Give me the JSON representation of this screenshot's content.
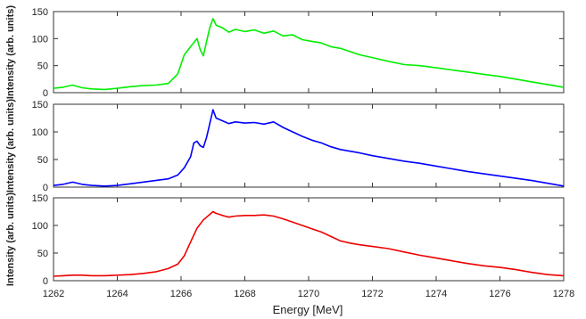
{
  "figure": {
    "xlabel": "Energy [MeV]",
    "x_ticks": [
      "1262",
      "1264",
      "1266",
      "1268",
      "1270",
      "1272",
      "1274",
      "1276",
      "1278"
    ]
  },
  "chart_data": [
    {
      "type": "line",
      "title": "",
      "xlabel": "",
      "ylabel": "Intensity (arb. units)",
      "xlim": [
        1262,
        1278
      ],
      "ylim": [
        0,
        150
      ],
      "y_ticks": [
        "0",
        "50",
        "100",
        "150"
      ],
      "grid": false,
      "color": "#00ee00",
      "series": [
        {
          "x": [
            1262.0,
            1262.3,
            1262.6,
            1262.9,
            1263.2,
            1263.6,
            1264.0,
            1264.4,
            1264.8,
            1265.2,
            1265.6,
            1265.9,
            1266.1,
            1266.3,
            1266.5,
            1266.6,
            1266.7,
            1266.8,
            1266.9,
            1267.0,
            1267.1,
            1267.3,
            1267.5,
            1267.7,
            1268.0,
            1268.3,
            1268.6,
            1268.9,
            1269.2,
            1269.5,
            1269.8,
            1270.1,
            1270.4,
            1270.7,
            1271.0,
            1271.3,
            1271.6,
            1272.0,
            1272.5,
            1273.0,
            1273.5,
            1274.0,
            1274.5,
            1275.0,
            1275.5,
            1276.0,
            1276.5,
            1277.0,
            1277.5,
            1278.0
          ],
          "y": [
            8,
            10,
            14,
            9,
            7,
            6,
            8,
            11,
            13,
            14,
            17,
            35,
            70,
            85,
            100,
            80,
            68,
            95,
            120,
            137,
            125,
            120,
            112,
            117,
            113,
            116,
            110,
            114,
            105,
            107,
            98,
            95,
            92,
            85,
            82,
            76,
            70,
            65,
            58,
            52,
            50,
            46,
            42,
            38,
            34,
            30,
            25,
            20,
            15,
            10
          ]
        }
      ]
    },
    {
      "type": "line",
      "title": "",
      "xlabel": "",
      "ylabel": "Intensity (arb. units)",
      "xlim": [
        1262,
        1278
      ],
      "ylim": [
        0,
        150
      ],
      "y_ticks": [
        "0",
        "50",
        "100",
        "150"
      ],
      "grid": false,
      "color": "#0000ff",
      "series": [
        {
          "x": [
            1262.0,
            1262.3,
            1262.6,
            1262.9,
            1263.2,
            1263.6,
            1264.0,
            1264.4,
            1264.8,
            1265.2,
            1265.6,
            1265.9,
            1266.1,
            1266.3,
            1266.4,
            1266.5,
            1266.6,
            1266.7,
            1266.8,
            1266.9,
            1267.0,
            1267.1,
            1267.3,
            1267.5,
            1267.7,
            1268.0,
            1268.3,
            1268.6,
            1268.9,
            1269.2,
            1269.5,
            1269.8,
            1270.1,
            1270.4,
            1270.7,
            1271.0,
            1271.3,
            1271.6,
            1272.0,
            1272.5,
            1273.0,
            1273.5,
            1274.0,
            1274.5,
            1275.0,
            1275.5,
            1276.0,
            1276.5,
            1277.0,
            1277.5,
            1278.0
          ],
          "y": [
            3,
            5,
            9,
            5,
            3,
            2,
            3,
            6,
            9,
            12,
            15,
            22,
            35,
            55,
            80,
            83,
            75,
            72,
            90,
            115,
            140,
            125,
            120,
            115,
            118,
            116,
            117,
            114,
            118,
            108,
            100,
            92,
            85,
            80,
            73,
            68,
            65,
            62,
            57,
            52,
            47,
            43,
            38,
            33,
            28,
            24,
            20,
            16,
            12,
            7,
            2
          ]
        }
      ]
    },
    {
      "type": "line",
      "title": "",
      "xlabel": "Energy [MeV]",
      "ylabel": "Intensity (arb. units)",
      "xlim": [
        1262,
        1278
      ],
      "ylim": [
        0,
        150
      ],
      "y_ticks": [
        "0",
        "50",
        "100",
        "150"
      ],
      "x_ticks": [
        "1262",
        "1264",
        "1266",
        "1268",
        "1270",
        "1272",
        "1274",
        "1276",
        "1278"
      ],
      "grid": false,
      "color": "#ee0000",
      "series": [
        {
          "x": [
            1262.0,
            1262.3,
            1262.6,
            1262.9,
            1263.2,
            1263.6,
            1264.0,
            1264.4,
            1264.8,
            1265.2,
            1265.6,
            1265.9,
            1266.1,
            1266.3,
            1266.5,
            1266.7,
            1266.9,
            1267.0,
            1267.1,
            1267.3,
            1267.5,
            1267.7,
            1268.0,
            1268.3,
            1268.6,
            1268.9,
            1269.2,
            1269.5,
            1269.8,
            1270.1,
            1270.4,
            1270.7,
            1271.0,
            1271.3,
            1271.6,
            1272.0,
            1272.5,
            1273.0,
            1273.5,
            1274.0,
            1274.5,
            1275.0,
            1275.5,
            1276.0,
            1276.5,
            1277.0,
            1277.5,
            1278.0
          ],
          "y": [
            8,
            9,
            10,
            10,
            9,
            9,
            10,
            11,
            13,
            16,
            22,
            30,
            45,
            70,
            95,
            110,
            120,
            125,
            122,
            118,
            115,
            117,
            118,
            118,
            119,
            117,
            112,
            106,
            100,
            94,
            88,
            80,
            72,
            68,
            65,
            62,
            58,
            52,
            46,
            41,
            36,
            31,
            27,
            24,
            20,
            15,
            11,
            9
          ]
        }
      ]
    }
  ]
}
